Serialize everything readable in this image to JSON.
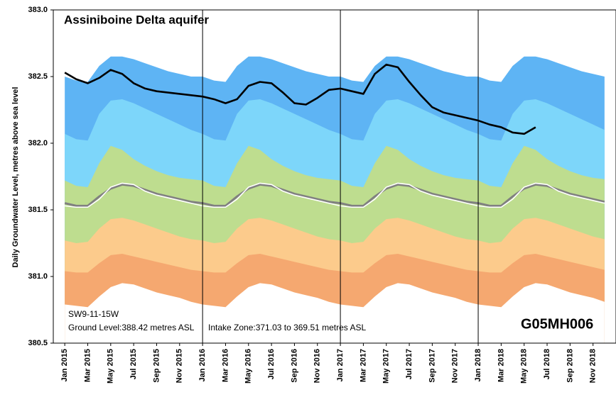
{
  "chart_data": {
    "type": "line",
    "title": "Assiniboine Delta aquifer",
    "y_label": "Daily Groundwater Level, metres above sea level",
    "annotations": [
      "SW9-11-15W",
      "Ground Level:388.42 metres ASL",
      "Intake Zone:371.03 to 369.51 metres ASL",
      "G05MH006"
    ],
    "x": [
      "2015-01",
      "2015-02",
      "2015-03",
      "2015-04",
      "2015-05",
      "2015-06",
      "2015-07",
      "2015-08",
      "2015-09",
      "2015-10",
      "2015-11",
      "2015-12",
      "2016-01",
      "2016-02",
      "2016-03",
      "2016-04",
      "2016-05",
      "2016-06",
      "2016-07",
      "2016-08",
      "2016-09",
      "2016-10",
      "2016-11",
      "2016-12",
      "2017-01",
      "2017-02",
      "2017-03",
      "2017-04",
      "2017-05",
      "2017-06",
      "2017-07",
      "2017-08",
      "2017-09",
      "2017-10",
      "2017-11",
      "2017-12",
      "2018-01",
      "2018-02",
      "2018-03",
      "2018-04",
      "2018-05",
      "2018-06",
      "2018-07",
      "2018-08",
      "2018-09",
      "2018-10",
      "2018-11",
      "2018-12"
    ],
    "xlim": [
      "2014-12",
      "2019-01"
    ],
    "xticks": [
      {
        "value": "2015-01",
        "label": "Jan 2015"
      },
      {
        "value": "2015-03",
        "label": "Mar 2015"
      },
      {
        "value": "2015-05",
        "label": "May 2015"
      },
      {
        "value": "2015-07",
        "label": "Jul 2015"
      },
      {
        "value": "2015-09",
        "label": "Sep 2015"
      },
      {
        "value": "2015-11",
        "label": "Nov 2015"
      },
      {
        "value": "2016-01",
        "label": "Jan 2016"
      },
      {
        "value": "2016-03",
        "label": "Mar 2016"
      },
      {
        "value": "2016-05",
        "label": "May 2016"
      },
      {
        "value": "2016-07",
        "label": "Jul 2016"
      },
      {
        "value": "2016-09",
        "label": "Sep 2016"
      },
      {
        "value": "2016-11",
        "label": "Nov 2016"
      },
      {
        "value": "2017-01",
        "label": "Jan 2017"
      },
      {
        "value": "2017-03",
        "label": "Mar 2017"
      },
      {
        "value": "2017-05",
        "label": "May 2017"
      },
      {
        "value": "2017-07",
        "label": "Jul 2017"
      },
      {
        "value": "2017-09",
        "label": "Sep 2017"
      },
      {
        "value": "2017-11",
        "label": "Nov 2017"
      },
      {
        "value": "2018-01",
        "label": "Jan 2018"
      },
      {
        "value": "2018-03",
        "label": "Mar 2018"
      },
      {
        "value": "2018-05",
        "label": "May 2018"
      },
      {
        "value": "2018-07",
        "label": "Jul 2018"
      },
      {
        "value": "2018-09",
        "label": "Sep 2018"
      },
      {
        "value": "2018-11",
        "label": "Nov 2018"
      }
    ],
    "ylim": [
      380.5,
      383.0
    ],
    "yticks": [
      {
        "value": 380.5,
        "label": "380.5"
      },
      {
        "value": 381.0,
        "label": "381.0"
      },
      {
        "value": 381.5,
        "label": "381.5"
      },
      {
        "value": 382.0,
        "label": "382.0"
      },
      {
        "value": 382.5,
        "label": "382.5"
      },
      {
        "value": 383.0,
        "label": "383.0"
      }
    ],
    "bands": [
      {
        "color": "#5eb4f4",
        "values": [
          382.5,
          382.47,
          382.46,
          382.58,
          382.65,
          382.65,
          382.63,
          382.6,
          382.57,
          382.54,
          382.52,
          382.5,
          382.5,
          382.47,
          382.46,
          382.58,
          382.65,
          382.65,
          382.63,
          382.6,
          382.57,
          382.54,
          382.52,
          382.5,
          382.5,
          382.47,
          382.46,
          382.58,
          382.65,
          382.65,
          382.63,
          382.6,
          382.57,
          382.54,
          382.52,
          382.5,
          382.5,
          382.47,
          382.46,
          382.58,
          382.65,
          382.65,
          382.63,
          382.6,
          382.57,
          382.54,
          382.52,
          382.5
        ]
      },
      {
        "color": "#7dd6fa",
        "values": [
          382.07,
          382.03,
          382.02,
          382.22,
          382.32,
          382.33,
          382.3,
          382.26,
          382.22,
          382.18,
          382.14,
          382.1,
          382.07,
          382.03,
          382.02,
          382.22,
          382.32,
          382.33,
          382.3,
          382.26,
          382.22,
          382.18,
          382.14,
          382.1,
          382.07,
          382.03,
          382.02,
          382.22,
          382.32,
          382.33,
          382.3,
          382.26,
          382.22,
          382.18,
          382.14,
          382.1,
          382.07,
          382.03,
          382.02,
          382.22,
          382.32,
          382.33,
          382.3,
          382.26,
          382.22,
          382.18,
          382.14,
          382.1
        ]
      },
      {
        "color": "#bedd8f",
        "values": [
          381.72,
          381.68,
          381.67,
          381.85,
          381.98,
          381.95,
          381.88,
          381.83,
          381.79,
          381.76,
          381.74,
          381.73,
          381.72,
          381.68,
          381.67,
          381.85,
          381.98,
          381.95,
          381.88,
          381.83,
          381.79,
          381.76,
          381.74,
          381.73,
          381.72,
          381.68,
          381.67,
          381.85,
          381.98,
          381.95,
          381.88,
          381.83,
          381.79,
          381.76,
          381.74,
          381.73,
          381.72,
          381.68,
          381.67,
          381.85,
          381.98,
          381.95,
          381.88,
          381.83,
          381.79,
          381.76,
          381.74,
          381.73
        ]
      },
      {
        "color": "#fccb8c",
        "values": [
          381.27,
          381.25,
          381.26,
          381.36,
          381.43,
          381.44,
          381.42,
          381.39,
          381.36,
          381.33,
          381.3,
          381.28,
          381.27,
          381.25,
          381.26,
          381.36,
          381.43,
          381.44,
          381.42,
          381.39,
          381.36,
          381.33,
          381.3,
          381.28,
          381.27,
          381.25,
          381.26,
          381.36,
          381.43,
          381.44,
          381.42,
          381.39,
          381.36,
          381.33,
          381.3,
          381.28,
          381.27,
          381.25,
          381.26,
          381.36,
          381.43,
          381.44,
          381.42,
          381.39,
          381.36,
          381.33,
          381.3,
          381.28
        ]
      },
      {
        "color": "#f5a870",
        "values": [
          381.04,
          381.03,
          381.03,
          381.1,
          381.16,
          381.17,
          381.15,
          381.13,
          381.11,
          381.09,
          381.07,
          381.05,
          381.04,
          381.03,
          381.03,
          381.1,
          381.16,
          381.17,
          381.15,
          381.13,
          381.11,
          381.09,
          381.07,
          381.05,
          381.04,
          381.03,
          381.03,
          381.1,
          381.16,
          381.17,
          381.15,
          381.13,
          381.11,
          381.09,
          381.07,
          381.05,
          381.04,
          381.03,
          381.03,
          381.1,
          381.16,
          381.17,
          381.15,
          381.13,
          381.11,
          381.09,
          381.07,
          381.05
        ]
      },
      {
        "color": "#ffffff",
        "values": [
          380.79,
          380.78,
          380.77,
          380.85,
          380.92,
          380.95,
          380.94,
          380.91,
          380.88,
          380.86,
          380.84,
          380.81,
          380.79,
          380.78,
          380.77,
          380.85,
          380.92,
          380.95,
          380.94,
          380.91,
          380.88,
          380.86,
          380.84,
          380.81,
          380.79,
          380.78,
          380.77,
          380.85,
          380.92,
          380.95,
          380.94,
          380.91,
          380.88,
          380.86,
          380.84,
          380.81,
          380.79,
          380.78,
          380.77,
          380.85,
          380.92,
          380.95,
          380.94,
          380.91,
          380.88,
          380.86,
          380.84,
          380.81
        ]
      }
    ],
    "series": [
      {
        "color": "#808080",
        "values": [
          381.55,
          381.53,
          381.53,
          381.6,
          381.66,
          381.69,
          381.68,
          381.65,
          381.62,
          381.6,
          381.58,
          381.56,
          381.55,
          381.53,
          381.53,
          381.6,
          381.66,
          381.69,
          381.68,
          381.65,
          381.62,
          381.6,
          381.58,
          381.56,
          381.55,
          381.53,
          381.53,
          381.6,
          381.66,
          381.69,
          381.68,
          381.65,
          381.62,
          381.6,
          381.58,
          381.56,
          381.55,
          381.53,
          381.53,
          381.6,
          381.66,
          381.69,
          381.68,
          381.65,
          381.62,
          381.6,
          381.58,
          381.56
        ]
      },
      {
        "color": "#ffffff",
        "values": [
          381.53,
          381.52,
          381.52,
          381.58,
          381.67,
          381.7,
          381.69,
          381.64,
          381.61,
          381.59,
          381.57,
          381.55,
          381.53,
          381.52,
          381.52,
          381.58,
          381.67,
          381.7,
          381.69,
          381.64,
          381.61,
          381.59,
          381.57,
          381.55,
          381.53,
          381.52,
          381.52,
          381.58,
          381.67,
          381.7,
          381.69,
          381.64,
          381.61,
          381.59,
          381.57,
          381.55,
          381.53,
          381.52,
          381.52,
          381.58,
          381.67,
          381.7,
          381.69,
          381.64,
          381.61,
          381.59,
          381.57,
          381.55
        ]
      },
      {
        "color": "#000000",
        "values": [
          382.53,
          382.48,
          382.45,
          382.49,
          382.55,
          382.52,
          382.45,
          382.41,
          382.39,
          382.38,
          382.37,
          382.36,
          382.35,
          382.33,
          382.3,
          382.33,
          382.43,
          382.46,
          382.45,
          382.38,
          382.3,
          382.29,
          382.34,
          382.4,
          382.41,
          382.39,
          382.37,
          382.52,
          382.59,
          382.57,
          382.46,
          382.36,
          382.27,
          382.23,
          382.21,
          382.19,
          382.17,
          382.14,
          382.12,
          382.08,
          382.07,
          382.12,
          null,
          null,
          null,
          null,
          null,
          null
        ]
      }
    ]
  }
}
